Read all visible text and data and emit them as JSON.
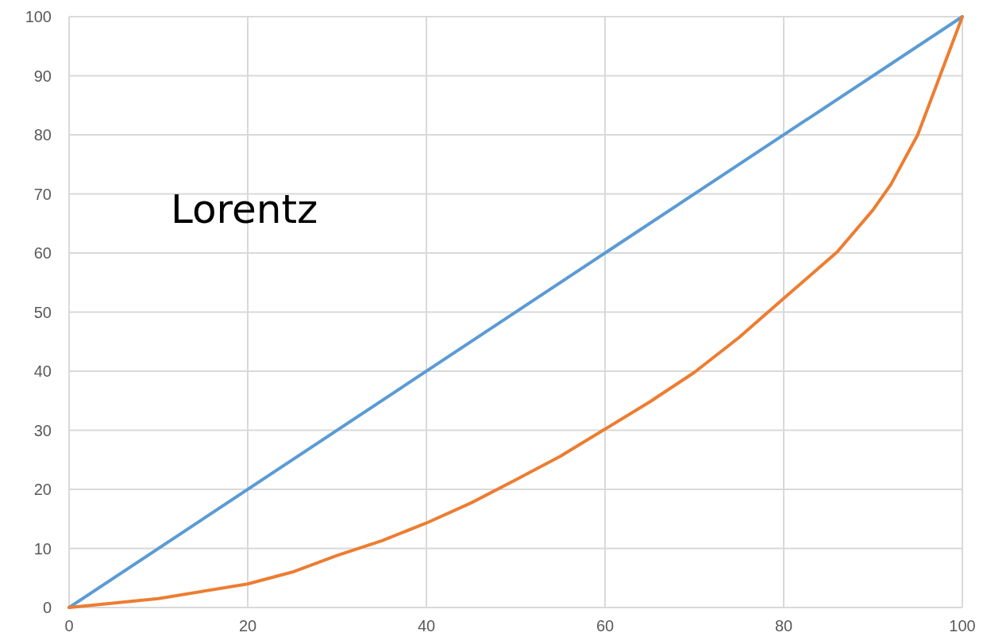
{
  "chart_data": {
    "type": "line",
    "annotations": [
      "Lorentz"
    ],
    "xlim": [
      0,
      100
    ],
    "xticks": [
      0,
      20,
      40,
      60,
      80,
      100
    ],
    "ylim": [
      0,
      100
    ],
    "yticks": [
      0,
      10,
      20,
      30,
      40,
      50,
      60,
      70,
      80,
      90,
      100
    ],
    "grid": true,
    "marker": "none",
    "line_style": "solid",
    "series": [
      {
        "color": "#5b9bd5",
        "x": [
          0,
          100
        ],
        "values": [
          0,
          100
        ]
      },
      {
        "color": "#ed7d31",
        "x": [
          0,
          10,
          20,
          25,
          30,
          35,
          40,
          45,
          50,
          55,
          60,
          65,
          70,
          75,
          80,
          86,
          90,
          92,
          95,
          100
        ],
        "values": [
          0,
          1.5,
          4,
          6,
          8.8,
          11.3,
          14.3,
          17.7,
          21.6,
          25.6,
          30.2,
          34.8,
          39.8,
          45.7,
          52.3,
          60.2,
          67.3,
          71.6,
          80,
          100
        ]
      }
    ]
  }
}
